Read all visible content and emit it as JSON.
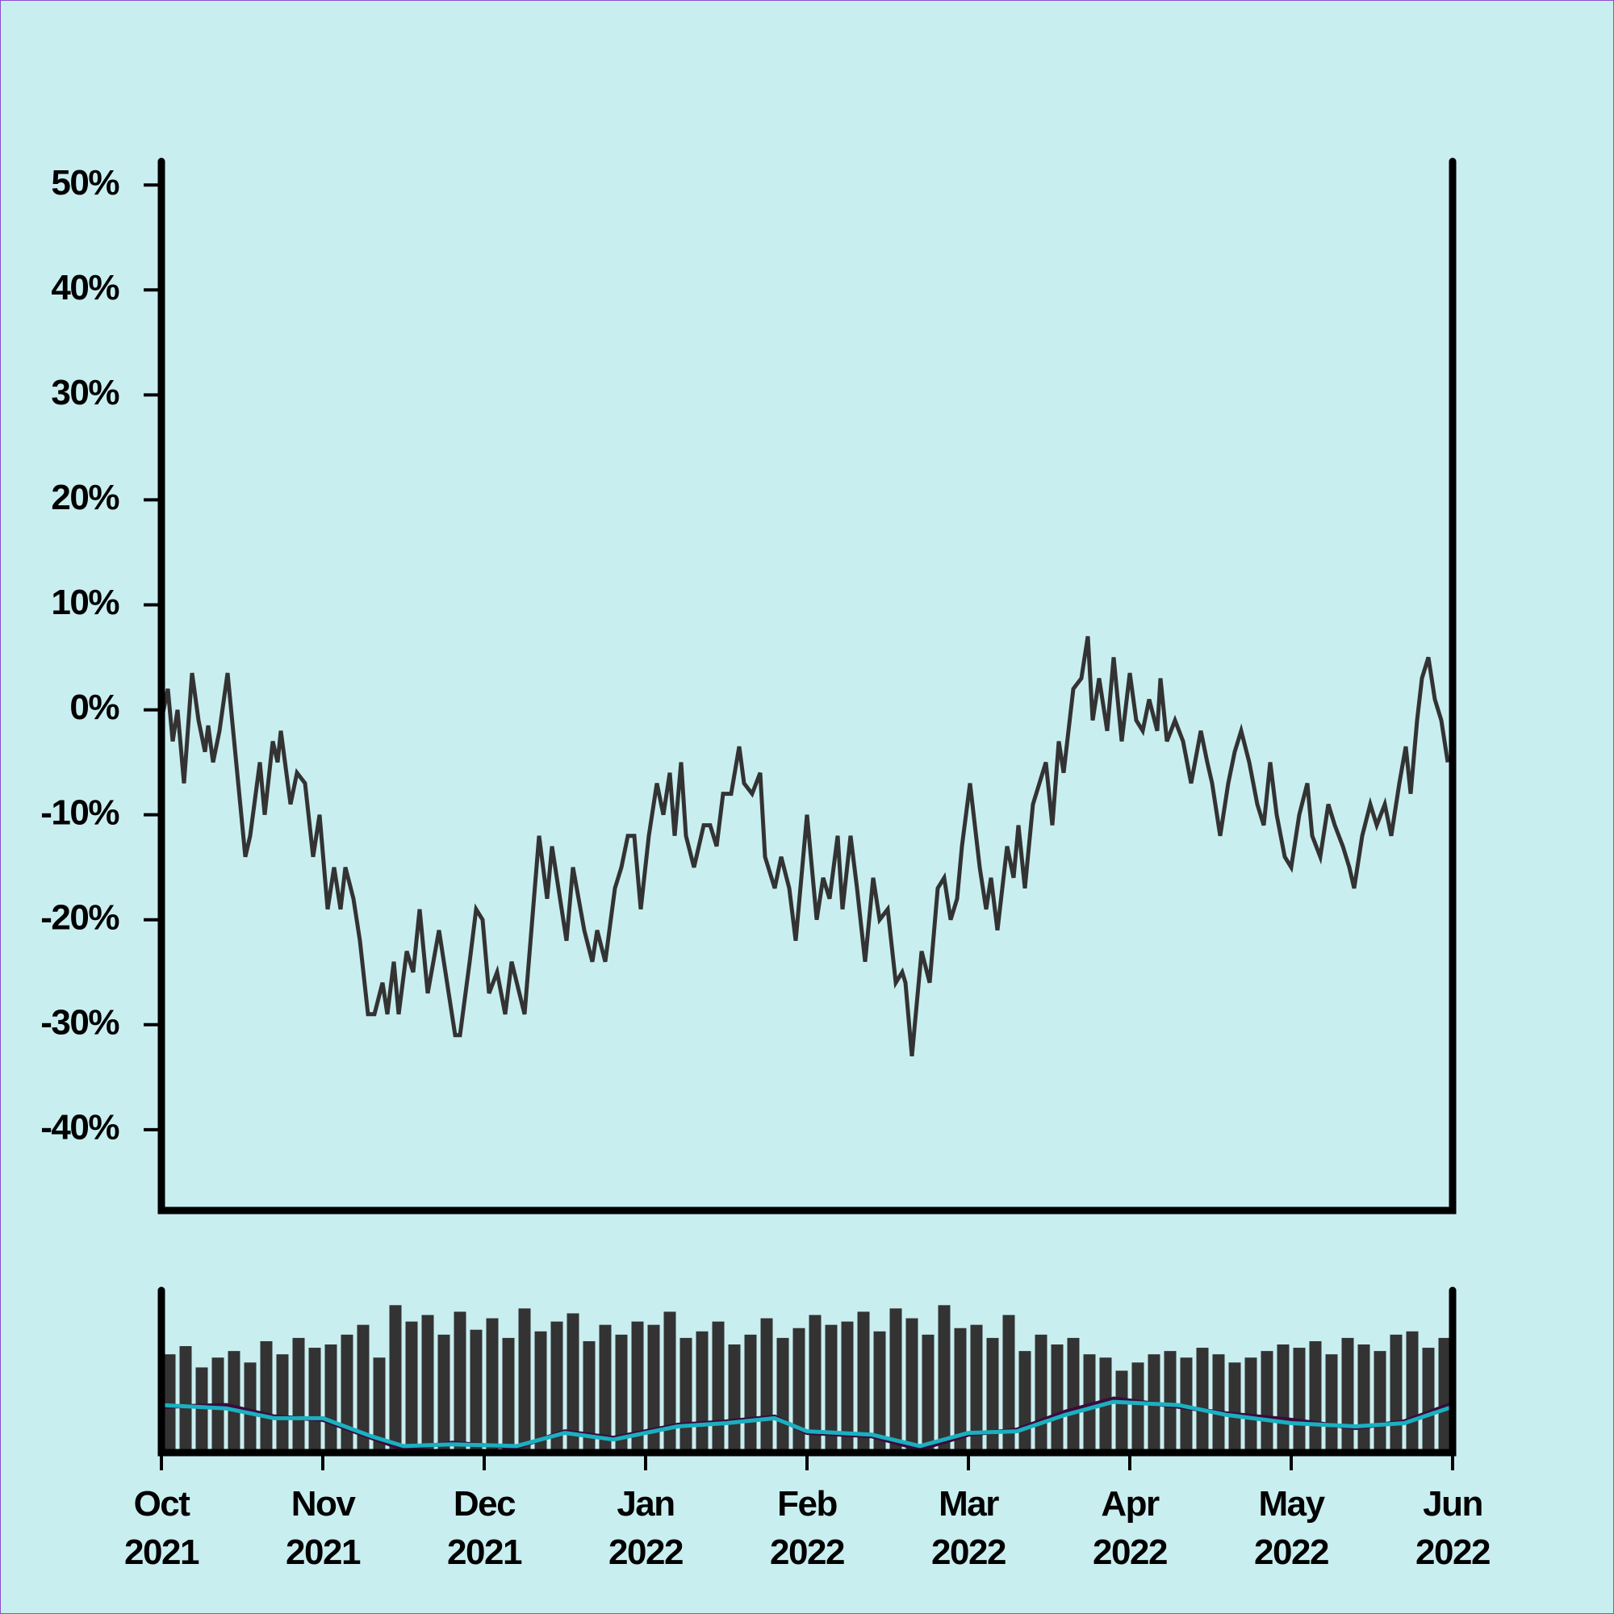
{
  "chart_data": [
    {
      "type": "line",
      "color": "#333333",
      "xlim": [
        0,
        8
      ],
      "ylim": [
        -47.7,
        52.4
      ],
      "yticks": [
        {
          "value": 50,
          "label": "50%"
        },
        {
          "value": 40,
          "label": "40%"
        },
        {
          "value": 30,
          "label": "30%"
        },
        {
          "value": 20,
          "label": "20%"
        },
        {
          "value": 10,
          "label": "10%"
        },
        {
          "value": 0,
          "label": "0%"
        },
        {
          "value": -10,
          "label": "-10%"
        },
        {
          "value": -20,
          "label": "-20%"
        },
        {
          "value": -30,
          "label": "-30%"
        },
        {
          "value": -40,
          "label": "-40%"
        }
      ],
      "x": [
        0,
        0.04,
        0.07,
        0.1,
        0.14,
        0.19,
        0.23,
        0.27,
        0.29,
        0.32,
        0.36,
        0.41,
        0.52,
        0.55,
        0.61,
        0.64,
        0.69,
        0.72,
        0.74,
        0.8,
        0.84,
        0.89,
        0.94,
        0.98,
        1.03,
        1.07,
        1.11,
        1.14,
        1.19,
        1.23,
        1.28,
        1.32,
        1.37,
        1.4,
        1.44,
        1.47,
        1.52,
        1.56,
        1.6,
        1.65,
        1.72,
        1.77,
        1.82,
        1.85,
        1.91,
        1.95,
        1.99,
        2.03,
        2.08,
        2.13,
        2.17,
        2.25,
        2.34,
        2.39,
        2.42,
        2.46,
        2.51,
        2.55,
        2.62,
        2.67,
        2.7,
        2.75,
        2.81,
        2.85,
        2.89,
        2.93,
        2.97,
        3.02,
        3.07,
        3.11,
        3.15,
        3.18,
        3.22,
        3.25,
        3.3,
        3.36,
        3.4,
        3.44,
        3.48,
        3.53,
        3.58,
        3.61,
        3.66,
        3.71,
        3.74,
        3.8,
        3.84,
        3.89,
        3.93,
        4.0,
        4.06,
        4.1,
        4.14,
        4.19,
        4.22,
        4.27,
        4.31,
        4.36,
        4.41,
        4.45,
        4.5,
        4.55,
        4.59,
        4.61,
        4.65,
        4.71,
        4.76,
        4.81,
        4.85,
        4.89,
        4.93,
        4.96,
        5.01,
        5.07,
        5.11,
        5.14,
        5.18,
        5.24,
        5.28,
        5.31,
        5.35,
        5.4,
        5.44,
        5.48,
        5.52,
        5.56,
        5.59,
        5.65,
        5.7,
        5.74,
        5.77,
        5.81,
        5.86,
        5.9,
        5.95,
        6.0,
        6.04,
        6.08,
        6.12,
        6.17,
        6.19,
        6.23,
        6.28,
        6.33,
        6.38,
        6.44,
        6.48,
        6.51,
        6.56,
        6.61,
        6.65,
        6.69,
        6.74,
        6.79,
        6.83,
        6.87,
        6.91,
        6.96,
        7.0,
        7.05,
        7.1,
        7.13,
        7.18,
        7.23,
        7.27,
        7.32,
        7.36,
        7.39,
        7.44,
        7.49,
        7.53,
        7.58,
        7.62,
        7.67,
        7.71,
        7.74,
        7.78,
        7.81,
        7.85,
        7.89,
        7.93,
        7.97
      ],
      "values": [
        -1,
        2,
        -3,
        0,
        -7,
        3.5,
        -1,
        -4,
        -1.5,
        -5,
        -2,
        3.5,
        -14,
        -12,
        -5,
        -10,
        -3,
        -5,
        -2,
        -9,
        -6,
        -7,
        -14,
        -10,
        -19,
        -15,
        -19,
        -15,
        -18,
        -22,
        -29,
        -29,
        -26,
        -29,
        -24,
        -29,
        -23,
        -25,
        -19,
        -27,
        -21,
        -26,
        -31,
        -31,
        -24,
        -19,
        -20,
        -27,
        -25,
        -29,
        -24,
        -29,
        -12,
        -18,
        -13,
        -17,
        -22,
        -15,
        -21,
        -24,
        -21,
        -24,
        -17,
        -15,
        -12,
        -12,
        -19,
        -12,
        -7,
        -10,
        -6,
        -12,
        -5,
        -12,
        -15,
        -11,
        -11,
        -13,
        -8,
        -8,
        -3.5,
        -7,
        -8,
        -6,
        -14,
        -17,
        -14,
        -17,
        -22,
        -10,
        -20,
        -16,
        -18,
        -12,
        -19,
        -12,
        -17,
        -24,
        -16,
        -20,
        -19,
        -26,
        -25,
        -26,
        -33,
        -23,
        -26,
        -17,
        -16,
        -20,
        -18,
        -13,
        -7,
        -15,
        -19,
        -16,
        -21,
        -13,
        -16,
        -11,
        -17,
        -9,
        -7,
        -5,
        -11,
        -3,
        -6,
        2,
        3,
        7,
        -1,
        3,
        -2,
        5,
        -3,
        3.5,
        -1,
        -2,
        1,
        -2,
        3,
        -3,
        -1,
        -3,
        -7,
        -2,
        -5,
        -7,
        -12,
        -7,
        -4,
        -2,
        -5,
        -9,
        -11,
        -5,
        -10,
        -14,
        -15,
        -10,
        -7,
        -12,
        -14,
        -9,
        -11,
        -13,
        -15,
        -17,
        -12,
        -9,
        -11,
        -9,
        -12,
        -7,
        -3.5,
        -8,
        -1,
        3,
        5,
        1,
        -1,
        -5
      ]
    },
    {
      "type": "bar",
      "color": "#333333",
      "xlim": [
        0,
        8
      ],
      "ylim": [
        0,
        100
      ],
      "xticks": [
        {
          "value": 0,
          "label": "Oct\n2021"
        },
        {
          "value": 1,
          "label": "Nov\n2021"
        },
        {
          "value": 2,
          "label": "Dec\n2021"
        },
        {
          "value": 3,
          "label": "Jan\n2022"
        },
        {
          "value": 4,
          "label": "Feb\n2022"
        },
        {
          "value": 5,
          "label": "Mar\n2022"
        },
        {
          "value": 6,
          "label": "Apr\n2022"
        },
        {
          "value": 7,
          "label": "May\n2022"
        },
        {
          "value": 8,
          "label": "Jun\n2022"
        }
      ],
      "x": [
        0.05,
        0.15,
        0.25,
        0.35,
        0.45,
        0.55,
        0.65,
        0.75,
        0.85,
        0.95,
        1.05,
        1.15,
        1.25,
        1.35,
        1.45,
        1.55,
        1.65,
        1.75,
        1.85,
        1.95,
        2.05,
        2.15,
        2.25,
        2.35,
        2.45,
        2.55,
        2.65,
        2.75,
        2.85,
        2.95,
        3.05,
        3.15,
        3.25,
        3.35,
        3.45,
        3.55,
        3.65,
        3.75,
        3.85,
        3.95,
        4.05,
        4.15,
        4.25,
        4.35,
        4.45,
        4.55,
        4.65,
        4.75,
        4.85,
        4.95,
        5.05,
        5.15,
        5.25,
        5.35,
        5.45,
        5.55,
        5.65,
        5.75,
        5.85,
        5.95,
        6.05,
        6.15,
        6.25,
        6.35,
        6.45,
        6.55,
        6.65,
        6.75,
        6.85,
        6.95,
        7.05,
        7.15,
        7.25,
        7.35,
        7.45,
        7.55,
        7.65,
        7.75,
        7.85,
        7.95
      ],
      "values": [
        60,
        65,
        52,
        58,
        62,
        55,
        68,
        60,
        70,
        64,
        66,
        72,
        78,
        58,
        90,
        80,
        84,
        72,
        86,
        75,
        82,
        70,
        88,
        74,
        80,
        85,
        68,
        78,
        72,
        80,
        78,
        86,
        70,
        74,
        80,
        66,
        72,
        82,
        70,
        76,
        84,
        78,
        80,
        86,
        74,
        88,
        82,
        72,
        90,
        76,
        78,
        70,
        84,
        62,
        72,
        66,
        70,
        60,
        58,
        50,
        55,
        60,
        62,
        58,
        64,
        60,
        55,
        58,
        62,
        66,
        64,
        68,
        60,
        70,
        66,
        62,
        72,
        74,
        64,
        70
      ],
      "lines": [
        {
          "color": "#3a0a3a",
          "x": [
            0,
            0.4,
            0.7,
            1.0,
            1.3,
            1.5,
            1.8,
            2.2,
            2.5,
            2.8,
            3.2,
            3.5,
            3.8,
            4.0,
            4.4,
            4.7,
            5.0,
            5.3,
            5.6,
            5.9,
            6.3,
            6.6,
            7.0,
            7.4,
            7.7,
            8.0
          ],
          "values": [
            28,
            29,
            22,
            20,
            9,
            2,
            6,
            3,
            13,
            9,
            17,
            19,
            22,
            12,
            10,
            2,
            11,
            14,
            25,
            33,
            28,
            24,
            20,
            15,
            19,
            30
          ]
        },
        {
          "color": "#1ab0c0",
          "x": [
            0,
            0.4,
            0.7,
            1.0,
            1.3,
            1.5,
            1.8,
            2.2,
            2.5,
            2.8,
            3.2,
            3.5,
            3.8,
            4.0,
            4.4,
            4.7,
            5.0,
            5.3,
            5.6,
            5.9,
            6.3,
            6.6,
            7.0,
            7.4,
            7.7,
            8.0
          ],
          "values": [
            29,
            27,
            21,
            21,
            10,
            4,
            5,
            4,
            12,
            8,
            16,
            18,
            21,
            13,
            11,
            4,
            12,
            13,
            23,
            31,
            29,
            23,
            18,
            16,
            18,
            28
          ]
        }
      ]
    }
  ]
}
